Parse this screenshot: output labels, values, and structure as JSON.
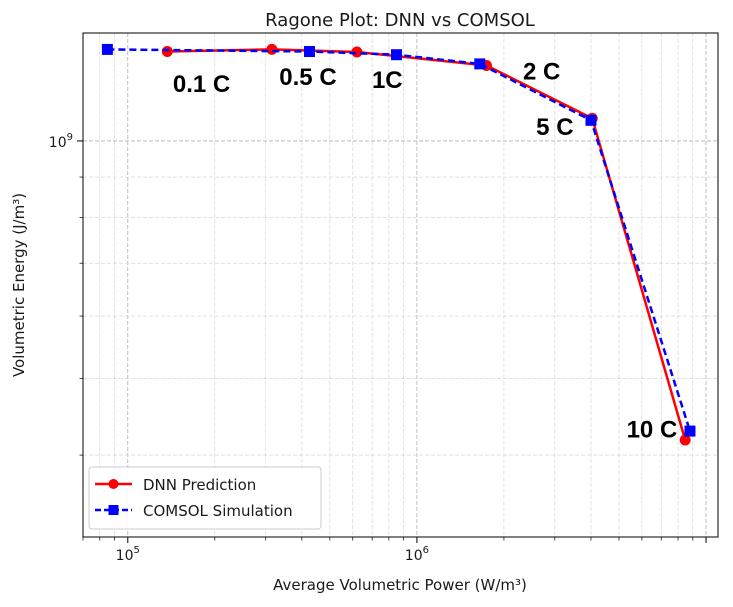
{
  "chart_data": {
    "type": "line",
    "title": "Ragone Plot: DNN vs COMSOL",
    "xlabel": "Average Volumetric Power (W/m³)",
    "ylabel": "Volumetric Energy (J/m³)",
    "xscale": "log",
    "yscale": "log",
    "xlim": [
      70000,
      11000000
    ],
    "ylim": [
      315000000,
      1370000000
    ],
    "grid": true,
    "legend_position": "lower-left",
    "x_ticks": [
      {
        "base": "10",
        "exp": "5",
        "value": 100000
      },
      {
        "base": "10",
        "exp": "6",
        "value": 1000000
      }
    ],
    "y_ticks": [
      {
        "base": "10",
        "exp": "9",
        "value": 1000000000
      }
    ],
    "series": [
      {
        "name": "DNN Prediction",
        "color": "#ff0000",
        "marker": "circle",
        "linestyle": "solid",
        "points": [
          {
            "x": 137000,
            "y": 1298000000
          },
          {
            "x": 315000,
            "y": 1306000000
          },
          {
            "x": 620000,
            "y": 1296000000
          },
          {
            "x": 1740000,
            "y": 1246000000
          },
          {
            "x": 4040000,
            "y": 1068000000
          },
          {
            "x": 8470000,
            "y": 418000000
          }
        ]
      },
      {
        "name": "COMSOL Simulation",
        "color": "#0000ff",
        "marker": "square",
        "linestyle": "dashed",
        "points": [
          {
            "x": 85000,
            "y": 1306000000
          },
          {
            "x": 425000,
            "y": 1298000000
          },
          {
            "x": 850000,
            "y": 1286000000
          },
          {
            "x": 1650000,
            "y": 1252000000
          },
          {
            "x": 4000000,
            "y": 1062000000
          },
          {
            "x": 8800000,
            "y": 429000000
          }
        ]
      }
    ],
    "annotations": [
      {
        "text": "0.1 C",
        "x": 180000,
        "y": 1180000000
      },
      {
        "text": "0.5 C",
        "x": 420000,
        "y": 1205000000
      },
      {
        "text": "1C",
        "x": 790000,
        "y": 1195000000
      },
      {
        "text": "2 C",
        "x": 2700000,
        "y": 1225000000
      },
      {
        "text": "5 C",
        "x": 3000000,
        "y": 1042000000
      },
      {
        "text": "10 C",
        "x": 6500000,
        "y": 431000000
      }
    ]
  }
}
